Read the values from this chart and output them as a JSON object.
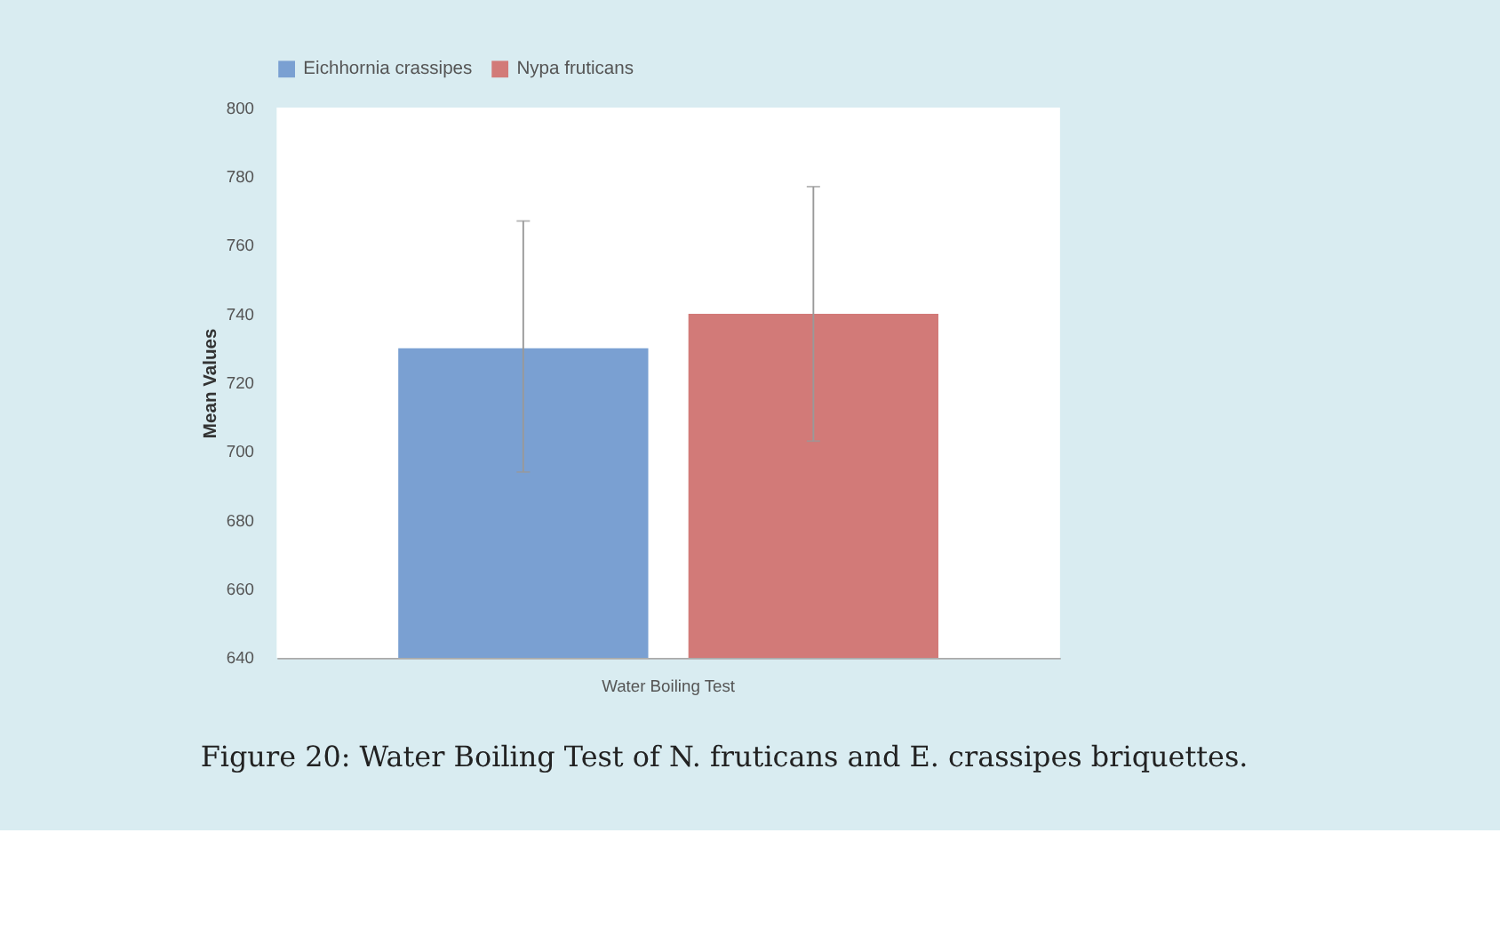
{
  "chart_data": {
    "type": "bar",
    "ylabel": "Mean Values",
    "categories": [
      "Water Boiling Test"
    ],
    "series": [
      {
        "name": "Eichhornia crassipes",
        "color": "#7aa0d2",
        "values": [
          730
        ],
        "errors": [
          [
            694,
            767
          ]
        ]
      },
      {
        "name": "Nypa fruticans",
        "color": "#d27a78",
        "values": [
          740
        ],
        "errors": [
          [
            703,
            777
          ]
        ]
      }
    ],
    "ylim": [
      640,
      800
    ],
    "yticks": [
      640,
      660,
      680,
      700,
      720,
      740,
      760,
      780,
      800
    ],
    "grid": false,
    "legend": "top",
    "annotations": [
      "Figure 20: Water Boiling Test of N. fruticans and E. crassipes briquettes."
    ]
  }
}
